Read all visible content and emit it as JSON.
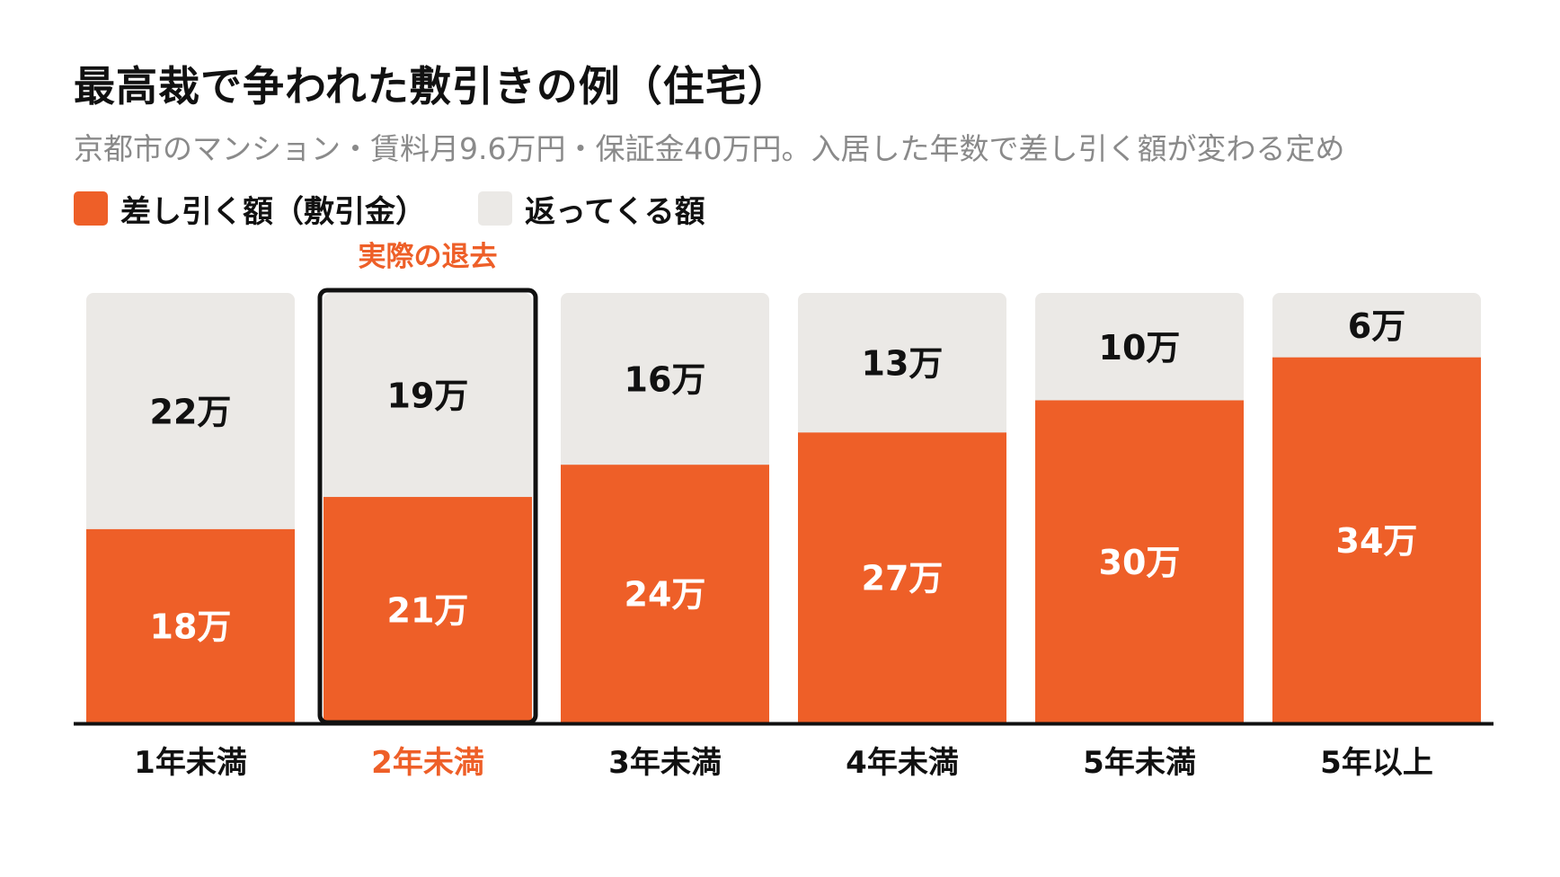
{
  "chart_data": {
    "type": "bar",
    "stacked": true,
    "title": "最高裁で争われた敷引きの例（住宅）",
    "subtitle": "京都市のマンション・賃料月9.6万円・保証金40万円。入居した年数で差し引く額が変わる定め",
    "categories": [
      "1年未満",
      "2年未満",
      "3年未満",
      "4年未満",
      "5年未満",
      "5年以上"
    ],
    "series": [
      {
        "name": "差し引く額（敷引金）",
        "values": [
          18,
          21,
          24,
          27,
          30,
          34
        ],
        "labels": [
          "18万",
          "21万",
          "24万",
          "27万",
          "30万",
          "34万"
        ]
      },
      {
        "name": "返ってくる額",
        "values": [
          22,
          19,
          16,
          13,
          10,
          6
        ],
        "labels": [
          "22万",
          "19万",
          "16万",
          "13万",
          "10万",
          "6万"
        ]
      }
    ],
    "ylim": [
      0,
      40
    ],
    "highlight_category": "2年未満",
    "annotation": "実際の退去",
    "legend_position": "top-left",
    "grid": false
  },
  "colors": {
    "deducted": "#ee5f28",
    "returned": "#ebe9e6",
    "highlight_text": "#ee5f28",
    "text": "#111111",
    "subtitle": "#8a8a8a",
    "axis": "#111111",
    "highlight_border": "#111111"
  }
}
